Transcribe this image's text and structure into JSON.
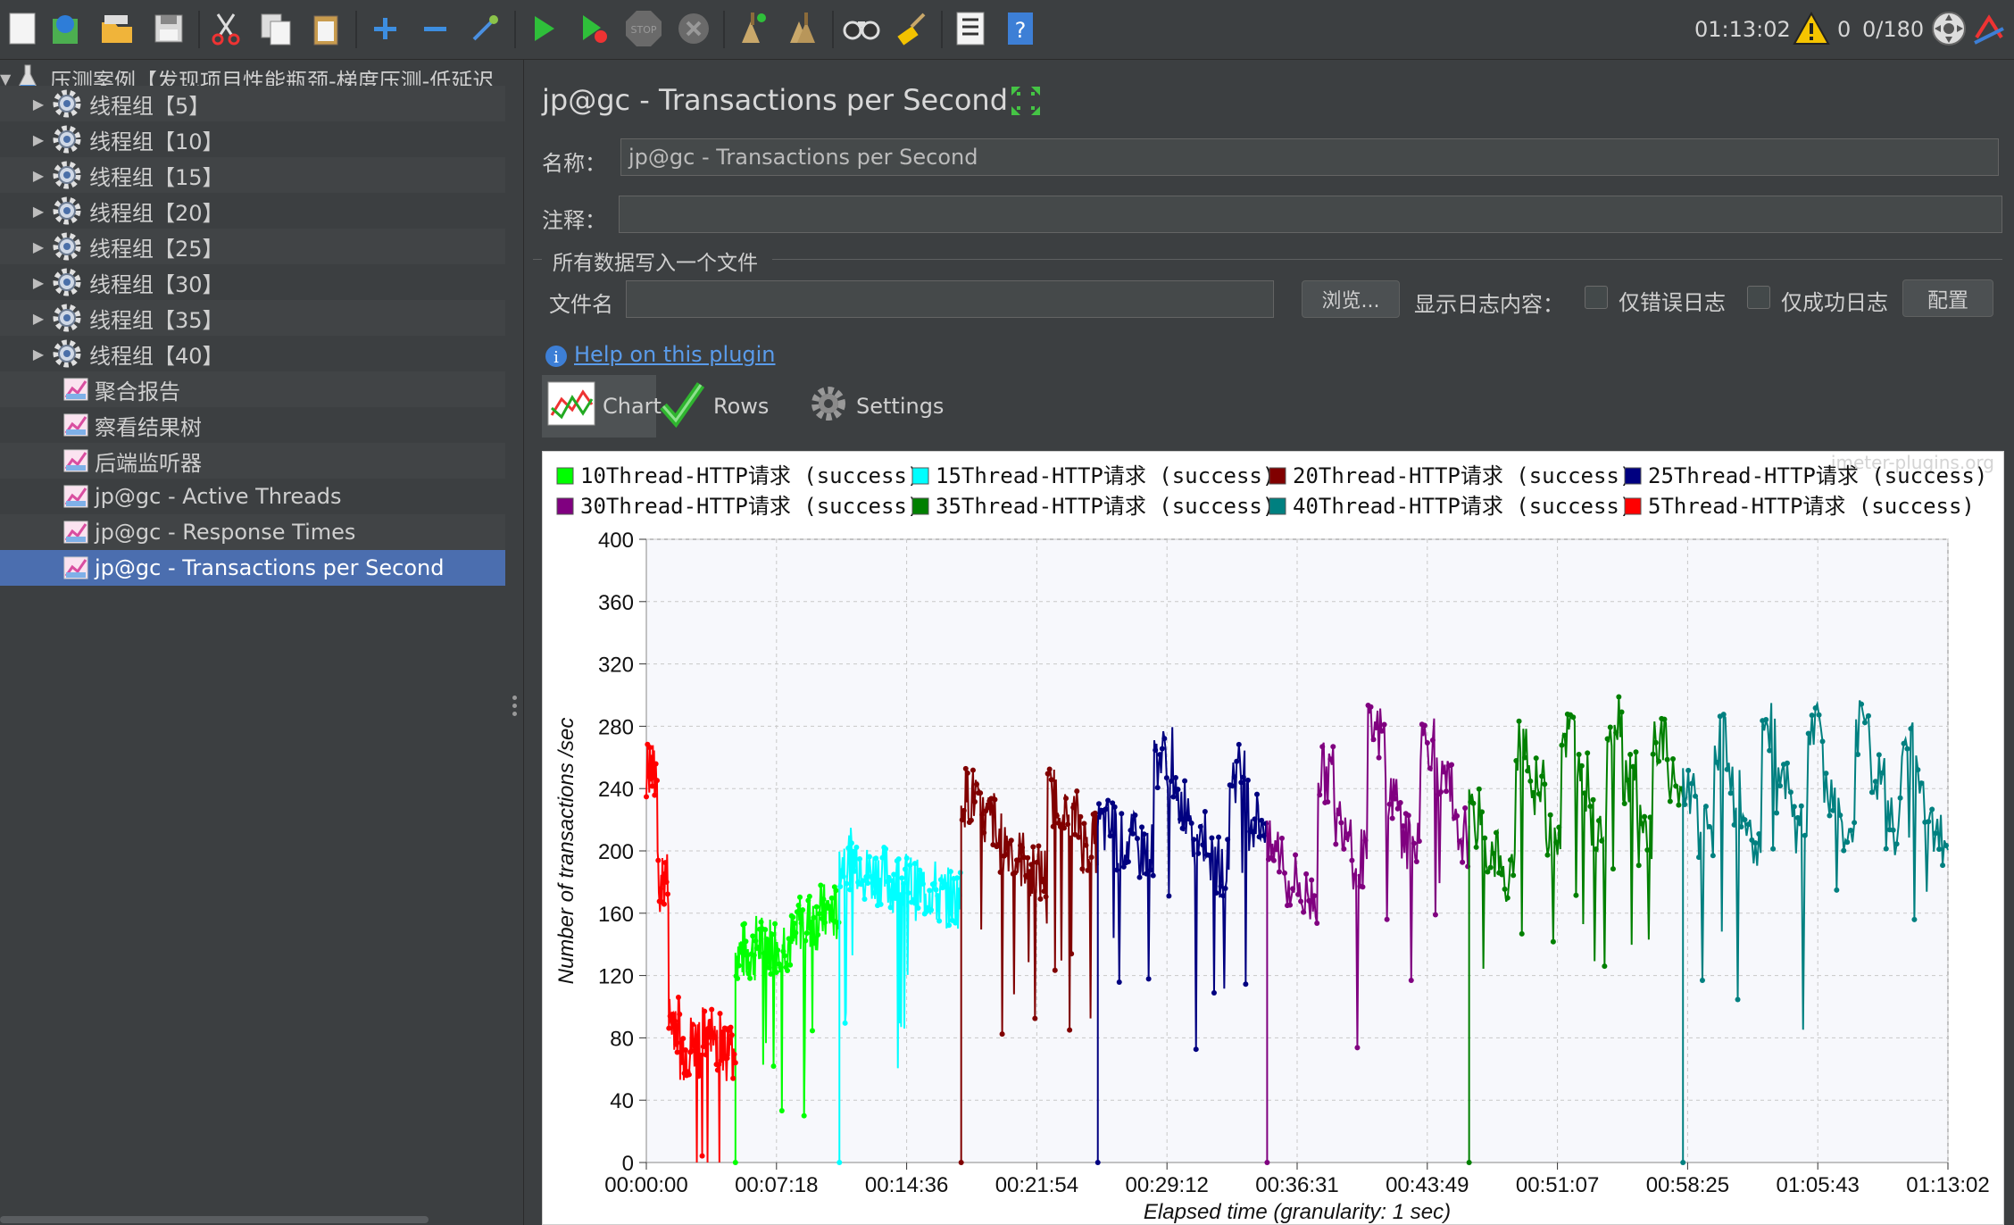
{
  "toolbar": {
    "time": "01:13:02",
    "warnings": "0",
    "threads": "0/180",
    "icons": [
      "new-icon",
      "templates-icon",
      "open-icon",
      "save-icon",
      "cut-icon",
      "copy-icon",
      "paste-icon",
      "expand-icon",
      "collapse-icon",
      "toggle-icon",
      "start-icon",
      "start-no-pause-icon",
      "stop-icon",
      "shutdown-icon",
      "clear-icon",
      "clear-all-icon",
      "search-icon",
      "reset-search-icon",
      "function-helper-icon",
      "help-icon"
    ]
  },
  "tree": {
    "root": "压测案例【发现项目性能瓶颈-梯度压测-低延迟",
    "items": [
      {
        "label": "线程组【5】",
        "type": "threadgroup"
      },
      {
        "label": "线程组【10】",
        "type": "threadgroup"
      },
      {
        "label": "线程组【15】",
        "type": "threadgroup"
      },
      {
        "label": "线程组【20】",
        "type": "threadgroup"
      },
      {
        "label": "线程组【25】",
        "type": "threadgroup"
      },
      {
        "label": "线程组【30】",
        "type": "threadgroup"
      },
      {
        "label": "线程组【35】",
        "type": "threadgroup"
      },
      {
        "label": "线程组【40】",
        "type": "threadgroup"
      },
      {
        "label": "聚合报告",
        "type": "listener"
      },
      {
        "label": "察看结果树",
        "type": "listener"
      },
      {
        "label": "后端监听器",
        "type": "listener"
      },
      {
        "label": "jp@gc - Active Threads",
        "type": "listener"
      },
      {
        "label": "jp@gc - Response Times",
        "type": "listener"
      },
      {
        "label": "jp@gc - Transactions per Second",
        "type": "listener",
        "selected": true
      }
    ]
  },
  "panel": {
    "title": "jp@gc - Transactions per Second",
    "name_label": "名称：",
    "name_value": "jp@gc - Transactions per Second",
    "comment_label": "注释：",
    "comment_value": "",
    "file_section": "所有数据写入一个文件",
    "filename_label": "文件名",
    "filename_value": "",
    "browse_button": "浏览...",
    "log_label": "显示日志内容：",
    "errors_only": "仅错误日志",
    "success_only": "仅成功日志",
    "config_button": "配置",
    "help_link": "Help on this plugin",
    "tabs": [
      {
        "label": "Chart",
        "active": true
      },
      {
        "label": "Rows",
        "active": false
      },
      {
        "label": "Settings",
        "active": false
      }
    ]
  },
  "chart_data": {
    "type": "line",
    "watermark": "jmeter-plugins.org",
    "xlabel": "Elapsed time (granularity: 1 sec)",
    "ylabel": "Number of transactions /sec",
    "ylim": [
      0,
      400
    ],
    "yticks": [
      0,
      40,
      80,
      120,
      160,
      200,
      240,
      280,
      320,
      360,
      400
    ],
    "xticks": [
      "00:00:00",
      "00:07:18",
      "00:14:36",
      "00:21:54",
      "00:29:12",
      "00:36:31",
      "00:43:49",
      "00:51:07",
      "00:58:25",
      "01:05:43",
      "01:13:02"
    ],
    "xlim_seconds": [
      0,
      4382
    ],
    "grid": true,
    "legend_position": "top",
    "series": [
      {
        "name": "10Thread-HTTP请求 (success)",
        "color": "#00ff00",
        "start": 300,
        "end": 650,
        "levels": [
          135,
          140,
          142,
          155,
          160
        ]
      },
      {
        "name": "15Thread-HTTP请求 (success)",
        "color": "#00ffff",
        "start": 650,
        "end": 1060,
        "levels": [
          195,
          185,
          180,
          175,
          170
        ]
      },
      {
        "name": "20Thread-HTTP请求 (success)",
        "color": "#800000",
        "start": 1060,
        "end": 1520,
        "levels": [
          235,
          220,
          205,
          195,
          185,
          235,
          220,
          205
        ]
      },
      {
        "name": "25Thread-HTTP请求 (success)",
        "color": "#000080",
        "start": 1520,
        "end": 2090,
        "levels": [
          215,
          205,
          200,
          260,
          230,
          210,
          190,
          250,
          220
        ]
      },
      {
        "name": "30Thread-HTTP请求 (success)",
        "color": "#800080",
        "start": 2090,
        "end": 2770,
        "levels": [
          200,
          180,
          170,
          250,
          220,
          195,
          275,
          235,
          205,
          270,
          240,
          210
        ]
      },
      {
        "name": "35Thread-HTTP请求 (success)",
        "color": "#008000",
        "start": 2770,
        "end": 3490,
        "levels": [
          220,
          200,
          180,
          270,
          240,
          215,
          275,
          245,
          215,
          285,
          250,
          210,
          270,
          240
        ]
      },
      {
        "name": "40Thread-HTTP请求 (success)",
        "color": "#008080",
        "start": 3490,
        "end": 4382,
        "levels": [
          240,
          215,
          270,
          235,
          205,
          275,
          240,
          210,
          275,
          240,
          210,
          280,
          245,
          215,
          270,
          235,
          205
        ]
      },
      {
        "name": "5Thread-HTTP请求 (success)",
        "color": "#ff0000",
        "start": 0,
        "end": 300,
        "levels": [
          250,
          180,
          90,
          70,
          75,
          80,
          78,
          72
        ]
      }
    ]
  }
}
